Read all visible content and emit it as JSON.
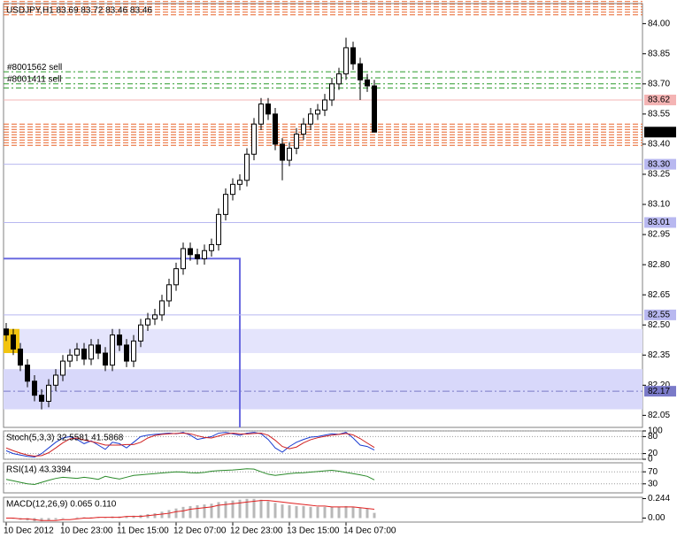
{
  "chart_data": [
    {
      "type": "candlestick",
      "title": "USDJPY,H1 83.69 83.72 83.46 83.46",
      "categories": [
        "10 Dec 2012",
        null,
        null,
        null,
        null,
        null,
        null,
        null,
        "10 Dec 23:00",
        null,
        null,
        null,
        null,
        null,
        null,
        null,
        "11 Dec 15:00",
        null,
        null,
        null,
        null,
        null,
        null,
        null,
        "12 Dec 07:00",
        null,
        null,
        null,
        null,
        null,
        null,
        null,
        "12 Dec 23:00",
        null,
        null,
        null,
        null,
        null,
        null,
        null,
        "13 Dec 15:00",
        null,
        null,
        null,
        null,
        null,
        null,
        null,
        "14 Dec 07:00",
        null,
        null,
        null,
        null
      ],
      "open": [
        82.48,
        82.45,
        82.38,
        82.3,
        82.22,
        82.15,
        82.12,
        82.2,
        82.25,
        82.32,
        82.35,
        82.38,
        82.33,
        82.4,
        82.36,
        82.3,
        82.45,
        82.4,
        82.32,
        82.42,
        82.5,
        82.53,
        82.55,
        82.62,
        82.7,
        82.78,
        82.88,
        82.85,
        82.83,
        82.87,
        82.9,
        83.05,
        83.15,
        83.2,
        83.22,
        83.35,
        83.5,
        83.6,
        83.55,
        83.4,
        83.32,
        83.38,
        83.45,
        83.5,
        83.55,
        83.57,
        83.62,
        83.7,
        83.75,
        83.88,
        83.8,
        83.72,
        83.69
      ],
      "high": [
        82.51,
        82.48,
        82.41,
        82.33,
        82.25,
        82.18,
        82.23,
        82.28,
        82.35,
        82.38,
        82.41,
        82.41,
        82.43,
        82.43,
        82.39,
        82.48,
        82.48,
        82.43,
        82.45,
        82.53,
        82.56,
        82.58,
        82.65,
        82.73,
        82.81,
        82.91,
        82.91,
        82.88,
        82.9,
        82.93,
        83.08,
        83.18,
        83.23,
        83.25,
        83.38,
        83.53,
        83.63,
        83.63,
        83.58,
        83.43,
        83.41,
        83.48,
        83.53,
        83.58,
        83.6,
        83.65,
        83.73,
        83.78,
        83.93,
        83.91,
        83.83,
        83.75,
        83.72
      ],
      "low": [
        82.42,
        82.35,
        82.27,
        82.19,
        82.12,
        82.08,
        82.09,
        82.17,
        82.22,
        82.29,
        82.32,
        82.3,
        82.3,
        82.33,
        82.27,
        82.27,
        82.37,
        82.29,
        82.29,
        82.39,
        82.47,
        82.5,
        82.52,
        82.59,
        82.67,
        82.75,
        82.82,
        82.8,
        82.8,
        82.84,
        82.87,
        83.02,
        83.12,
        83.17,
        83.19,
        83.32,
        83.47,
        83.52,
        83.37,
        83.22,
        83.29,
        83.35,
        83.42,
        83.47,
        83.52,
        83.54,
        83.59,
        83.67,
        83.72,
        83.77,
        83.62,
        83.66,
        83.46
      ],
      "close": [
        82.45,
        82.38,
        82.3,
        82.22,
        82.15,
        82.12,
        82.2,
        82.25,
        82.32,
        82.35,
        82.38,
        82.33,
        82.4,
        82.36,
        82.3,
        82.45,
        82.4,
        82.32,
        82.42,
        82.5,
        82.53,
        82.55,
        82.62,
        82.7,
        82.78,
        82.88,
        82.85,
        82.83,
        82.87,
        82.9,
        83.05,
        83.15,
        83.2,
        83.22,
        83.35,
        83.5,
        83.6,
        83.55,
        83.4,
        83.32,
        83.38,
        83.45,
        83.5,
        83.55,
        83.57,
        83.62,
        83.7,
        83.75,
        83.88,
        83.8,
        83.72,
        83.69,
        83.46
      ],
      "color": "#000000",
      "ylim": [
        81.99,
        84.1
      ],
      "yticks": [
        {
          "value": 84.0,
          "label": "84.00"
        },
        {
          "value": 83.85,
          "label": "83.85"
        },
        {
          "value": 83.7,
          "label": "83.70"
        },
        {
          "value": 83.55,
          "label": "83.55"
        },
        {
          "value": 83.4,
          "label": "83.40"
        },
        {
          "value": 83.25,
          "label": "83.25"
        },
        {
          "value": 83.1,
          "label": "83.10"
        },
        {
          "value": 82.95,
          "label": "82.95"
        },
        {
          "value": 82.8,
          "label": "82.80"
        },
        {
          "value": 82.65,
          "label": "82.65"
        },
        {
          "value": 82.5,
          "label": "82.50"
        },
        {
          "value": 82.35,
          "label": "82.35"
        },
        {
          "value": 82.2,
          "label": "82.20"
        },
        {
          "value": 82.05,
          "label": "82.05"
        }
      ],
      "zones": [
        {
          "from": 82.36,
          "to": 82.48,
          "color": "#e4e4fc"
        },
        {
          "from": 82.08,
          "to": 82.28,
          "color": "#d8d8fa"
        }
      ],
      "box": {
        "top": 82.83,
        "end": 33,
        "color": "#6a6ae0"
      },
      "dashed_bands": [
        {
          "from": 84.04,
          "to": 84.11,
          "color": "#e8642a"
        },
        {
          "from": 83.39,
          "to": 83.5,
          "color": "#e8642a"
        }
      ],
      "green_levels": [
        83.76,
        83.73,
        83.7,
        83.68
      ],
      "green_color": "#2a9a2a",
      "price_lines": [
        {
          "value": 83.62,
          "label": "83.62",
          "color": "#f4b4b4"
        },
        {
          "value": 83.3,
          "label": "83.30",
          "color": "#b8b8f0"
        },
        {
          "value": 83.01,
          "label": "83.01",
          "color": "#b8b8f0"
        },
        {
          "value": 82.55,
          "label": "82.55",
          "color": "#b8b8f0"
        },
        {
          "value": 82.17,
          "label": "82.17",
          "color": "#7a7ac8",
          "dashed": true
        }
      ],
      "orders": [
        {
          "name": "#8001562 sell",
          "value": 83.76
        },
        {
          "name": "#8001411 sell",
          "value": 83.7
        }
      ],
      "current_price": {
        "value": 83.46,
        "label": "83.46"
      }
    },
    {
      "type": "line",
      "title": "Stoch(5,3,3) 32.5581 41.5868",
      "ylim": [
        0,
        100
      ],
      "yticks": [
        100,
        80,
        20,
        0
      ],
      "grid": true,
      "series": [
        {
          "color": "#1a3cd0",
          "values": [
            30,
            20,
            15,
            10,
            8,
            20,
            40,
            60,
            75,
            80,
            70,
            55,
            65,
            50,
            35,
            60,
            55,
            40,
            60,
            80,
            85,
            88,
            90,
            92,
            90,
            95,
            85,
            70,
            75,
            80,
            92,
            95,
            90,
            85,
            92,
            95,
            90,
            70,
            40,
            25,
            45,
            60,
            70,
            78,
            80,
            85,
            90,
            88,
            95,
            75,
            50,
            45,
            32.5581
          ]
        },
        {
          "color": "#d02020",
          "values": [
            40,
            30,
            22,
            15,
            11,
            13,
            23,
            40,
            58,
            72,
            75,
            68,
            63,
            57,
            50,
            50,
            50,
            52,
            52,
            60,
            75,
            84,
            88,
            90,
            91,
            92,
            90,
            83,
            77,
            75,
            82,
            89,
            92,
            90,
            89,
            91,
            92,
            85,
            67,
            45,
            37,
            43,
            58,
            69,
            76,
            81,
            85,
            88,
            91,
            86,
            73,
            57,
            41.5868
          ]
        }
      ]
    },
    {
      "type": "line",
      "title": "RSI(14) 43.3394",
      "ylim": [
        0,
        100
      ],
      "yticks": [
        70,
        30
      ],
      "grid": true,
      "series": [
        {
          "color": "#2a8a2a",
          "values": [
            45,
            40,
            35,
            30,
            28,
            35,
            42,
            48,
            52,
            50,
            48,
            52,
            49,
            45,
            55,
            50,
            46,
            52,
            58,
            60,
            62,
            64,
            66,
            68,
            70,
            69,
            67,
            66,
            68,
            72,
            74,
            75,
            76,
            78,
            80,
            79,
            70,
            62,
            58,
            61,
            64,
            66,
            67,
            69,
            71,
            73,
            75,
            72,
            68,
            64,
            60,
            55,
            43.3394
          ]
        }
      ]
    },
    {
      "type": "bar",
      "title": "MACD(12,26,9) 0.065 0.110",
      "ylim": [
        -0.05,
        0.26
      ],
      "yticks": [
        {
          "value": 0.244,
          "label": "0.244"
        },
        {
          "value": 0,
          "label": "0.00"
        }
      ],
      "color": "#b8b8b8",
      "values": [
        0.0,
        -0.01,
        -0.02,
        -0.03,
        -0.04,
        -0.04,
        -0.03,
        -0.02,
        -0.01,
        0.0,
        0.01,
        0.01,
        0.01,
        0.01,
        0.01,
        0.02,
        0.02,
        0.02,
        0.03,
        0.04,
        0.05,
        0.06,
        0.08,
        0.1,
        0.12,
        0.14,
        0.15,
        0.16,
        0.17,
        0.18,
        0.2,
        0.21,
        0.22,
        0.23,
        0.24,
        0.24,
        0.23,
        0.21,
        0.19,
        0.17,
        0.16,
        0.15,
        0.15,
        0.14,
        0.14,
        0.14,
        0.14,
        0.14,
        0.15,
        0.14,
        0.13,
        0.12,
        0.065
      ],
      "series": [
        {
          "color": "#e02020",
          "values": [
            0.0,
            0.0,
            -0.01,
            -0.01,
            -0.02,
            -0.03,
            -0.03,
            -0.03,
            -0.02,
            -0.02,
            -0.01,
            0.0,
            0.0,
            0.01,
            0.01,
            0.01,
            0.01,
            0.02,
            0.02,
            0.02,
            0.03,
            0.04,
            0.05,
            0.06,
            0.08,
            0.09,
            0.11,
            0.12,
            0.13,
            0.14,
            0.16,
            0.17,
            0.18,
            0.19,
            0.2,
            0.21,
            0.22,
            0.22,
            0.21,
            0.2,
            0.19,
            0.18,
            0.17,
            0.16,
            0.15,
            0.15,
            0.14,
            0.14,
            0.14,
            0.14,
            0.13,
            0.12,
            0.11
          ]
        }
      ]
    }
  ]
}
